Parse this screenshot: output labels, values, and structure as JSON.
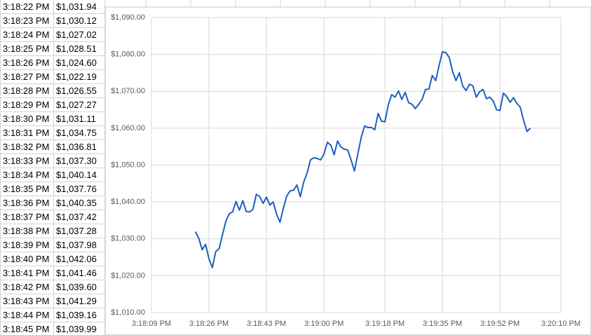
{
  "table": {
    "rows": [
      [
        "3:18:22 PM",
        "$1,031.94"
      ],
      [
        "3:18:23 PM",
        "$1,030.12"
      ],
      [
        "3:18:24 PM",
        "$1,027.02"
      ],
      [
        "3:18:25 PM",
        "$1,028.51"
      ],
      [
        "3:18:26 PM",
        "$1,024.60"
      ],
      [
        "3:18:27 PM",
        "$1,022.19"
      ],
      [
        "3:18:28 PM",
        "$1,026.55"
      ],
      [
        "3:18:29 PM",
        "$1,027.27"
      ],
      [
        "3:18:30 PM",
        "$1,031.11"
      ],
      [
        "3:18:31 PM",
        "$1,034.75"
      ],
      [
        "3:18:32 PM",
        "$1,036.81"
      ],
      [
        "3:18:33 PM",
        "$1,037.30"
      ],
      [
        "3:18:34 PM",
        "$1,040.14"
      ],
      [
        "3:18:35 PM",
        "$1,037.76"
      ],
      [
        "3:18:36 PM",
        "$1,040.35"
      ],
      [
        "3:18:37 PM",
        "$1,037.42"
      ],
      [
        "3:18:38 PM",
        "$1,037.28"
      ],
      [
        "3:18:39 PM",
        "$1,037.98"
      ],
      [
        "3:18:40 PM",
        "$1,042.06"
      ],
      [
        "3:18:41 PM",
        "$1,041.46"
      ],
      [
        "3:18:42 PM",
        "$1,039.60"
      ],
      [
        "3:18:43 PM",
        "$1,041.29"
      ],
      [
        "3:18:44 PM",
        "$1,039.16"
      ],
      [
        "3:18:45 PM",
        "$1,039.99"
      ]
    ]
  },
  "chart_data": {
    "type": "line",
    "color": "#1f5fbf",
    "grid": true,
    "x": [
      55102,
      55103,
      55104,
      55105,
      55106,
      55107,
      55108,
      55109,
      55110,
      55111,
      55112,
      55113,
      55114,
      55115,
      55116,
      55117,
      55118,
      55119,
      55120,
      55121,
      55122,
      55123,
      55124,
      55125,
      55126,
      55127,
      55128,
      55129,
      55130,
      55131,
      55132,
      55133,
      55134,
      55135,
      55136,
      55137,
      55138,
      55139,
      55140,
      55141,
      55142,
      55143,
      55144,
      55145,
      55146,
      55147,
      55148,
      55149,
      55150,
      55151,
      55152,
      55153,
      55154,
      55155,
      55156,
      55157,
      55158,
      55159,
      55160,
      55161,
      55162,
      55163,
      55164,
      55165,
      55166,
      55167,
      55168,
      55169,
      55170,
      55171,
      55172,
      55173,
      55174,
      55175,
      55176,
      55177,
      55178,
      55179,
      55180,
      55181,
      55182,
      55183,
      55184,
      55185,
      55186,
      55187,
      55188,
      55189,
      55190,
      55191,
      55192,
      55193,
      55194,
      55195,
      55196,
      55197,
      55198,
      55199,
      55200,
      55201
    ],
    "values": [
      1031.94,
      1030.12,
      1027.02,
      1028.51,
      1024.6,
      1022.19,
      1026.55,
      1027.27,
      1031.11,
      1034.75,
      1036.81,
      1037.3,
      1040.14,
      1037.76,
      1040.35,
      1037.42,
      1037.28,
      1037.98,
      1042.06,
      1041.46,
      1039.6,
      1041.29,
      1039.16,
      1039.99,
      1036.6,
      1034.5,
      1038.3,
      1041.6,
      1043,
      1043.2,
      1044.6,
      1041.4,
      1045.4,
      1047.8,
      1051.4,
      1052,
      1051.8,
      1051.4,
      1053,
      1056.2,
      1055.4,
      1052.8,
      1056.5,
      1054.9,
      1054.3,
      1054.1,
      1051.4,
      1048.4,
      1053,
      1057.5,
      1060.6,
      1060.2,
      1060.2,
      1059.6,
      1064,
      1061.9,
      1061.7,
      1066.3,
      1069.1,
      1068.4,
      1070.1,
      1067.8,
      1069.7,
      1066.9,
      1066.5,
      1065.3,
      1066.5,
      1067.8,
      1070.5,
      1070.6,
      1074.3,
      1072.9,
      1076.9,
      1080.7,
      1080.5,
      1079.2,
      1075.4,
      1072.9,
      1075,
      1071.4,
      1070.2,
      1071.9,
      1071.5,
      1068.4,
      1069.9,
      1070.5,
      1068,
      1068.4,
      1067.4,
      1065,
      1064.8,
      1069.5,
      1068.6,
      1067,
      1068.3,
      1066.7,
      1065.7,
      1062.1,
      1059.1,
      1060
    ],
    "xlim": [
      55089,
      55210
    ],
    "xticks": [
      {
        "value": 55089,
        "label": "3:18:09 PM"
      },
      {
        "value": 55106,
        "label": "3:18:26 PM"
      },
      {
        "value": 55123,
        "label": "3:18:43 PM"
      },
      {
        "value": 55140,
        "label": "3:19:00 PM"
      },
      {
        "value": 55158,
        "label": "3:19:18 PM"
      },
      {
        "value": 55175,
        "label": "3:19:35 PM"
      },
      {
        "value": 55192,
        "label": "3:19:52 PM"
      },
      {
        "value": 55210,
        "label": "3:20:10 PM"
      }
    ],
    "ylim": [
      1010,
      1090
    ],
    "yticks": [
      {
        "value": 1010,
        "label": "$1,010.00"
      },
      {
        "value": 1020,
        "label": "$1,020.00"
      },
      {
        "value": 1030,
        "label": "$1,030.00"
      },
      {
        "value": 1040,
        "label": "$1,040.00"
      },
      {
        "value": 1050,
        "label": "$1,050.00"
      },
      {
        "value": 1060,
        "label": "$1,060.00"
      },
      {
        "value": 1070,
        "label": "$1,070.00"
      },
      {
        "value": 1080,
        "label": "$1,080.00"
      },
      {
        "value": 1090,
        "label": "$1,090.00"
      }
    ]
  }
}
